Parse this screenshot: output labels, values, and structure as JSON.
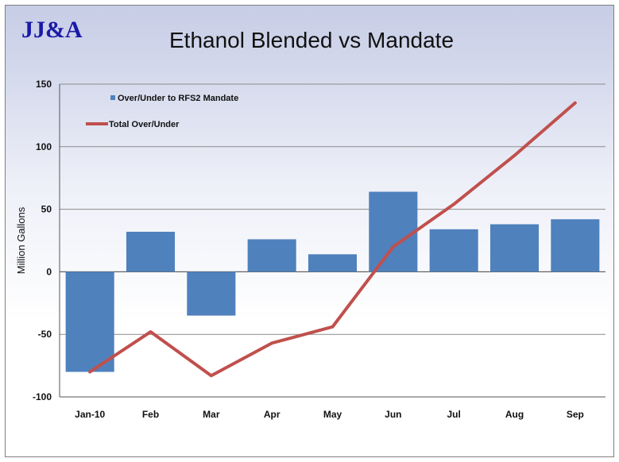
{
  "logo": "JJ&A",
  "chart_data": {
    "type": "bar",
    "title": "Ethanol Blended vs Mandate",
    "ylabel": "Million Gallons",
    "xlabel": "",
    "ylim": [
      -100,
      150
    ],
    "yticks": [
      -100,
      -50,
      0,
      50,
      100,
      150
    ],
    "grid": true,
    "legend_position": "top-left",
    "categories": [
      "Jan-10",
      "Feb",
      "Mar",
      "Apr",
      "May",
      "Jun",
      "Jul",
      "Aug",
      "Sep"
    ],
    "series": [
      {
        "name": "Over/Under to RFS2 Mandate",
        "type": "bar",
        "color": "#4f81bd",
        "values": [
          -80,
          32,
          -35,
          26,
          14,
          64,
          34,
          38,
          42
        ]
      },
      {
        "name": "Total Over/Under",
        "type": "line",
        "color": "#c0504d",
        "values": [
          -80,
          -48,
          -83,
          -57,
          -44,
          20,
          54,
          93,
          135
        ]
      }
    ]
  }
}
